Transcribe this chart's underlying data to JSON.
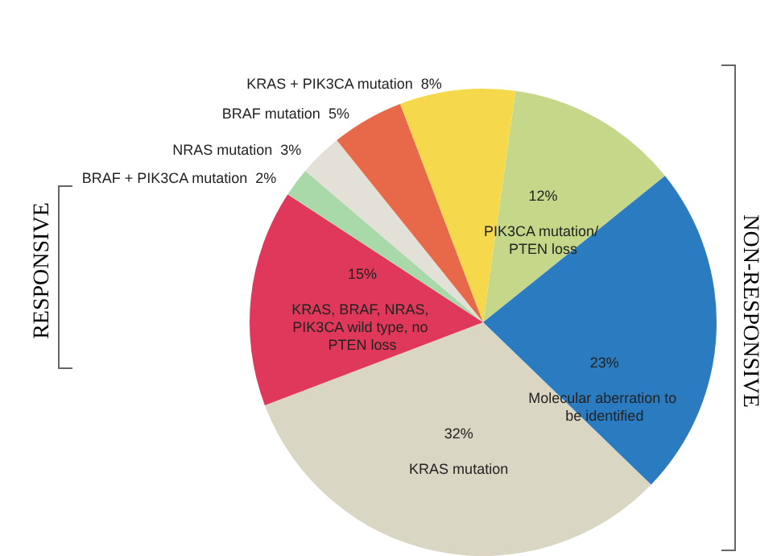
{
  "chart_data": {
    "type": "pie",
    "categories": [
      "PIK3CA mutation/ PTEN loss",
      "Molecular aberration to be identified",
      "KRAS mutation",
      "KRAS, BRAF, NRAS, PIK3CA wild type, no PTEN loss",
      "BRAF + PIK3CA mutation",
      "NRAS mutation",
      "BRAF mutation",
      "KRAS + PIK3CA mutation"
    ],
    "values": [
      12,
      23,
      32,
      15,
      2,
      3,
      5,
      8
    ],
    "value_labels": [
      "12%",
      "23%",
      "32%",
      "15%",
      "2%",
      "3%",
      "5%",
      "8%"
    ],
    "colors": [
      "#c5d88a",
      "#2a7bbf",
      "#d9d6c3",
      "#e0385a",
      "#a9d9a9",
      "#e3e0d8",
      "#e8694a",
      "#f6d84c"
    ],
    "annotations": [
      "RESPONSIVE",
      "NON-RESPONSIVE"
    ]
  }
}
